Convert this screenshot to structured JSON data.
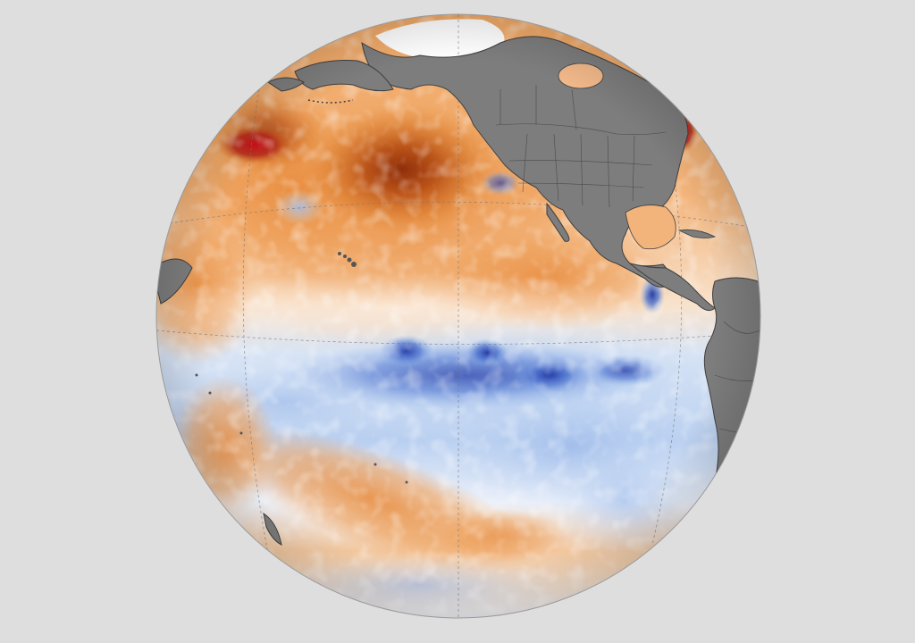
{
  "map": {
    "projection": "orthographic",
    "center_region": "eastern-equatorial-pacific",
    "variable": "sea-surface-temperature-anomaly",
    "pattern": "La Nina",
    "colors": {
      "background": "#dedede",
      "land": "#7d7d7d",
      "land_border": "#3f3f3f",
      "ice": "#ffffff",
      "neutral": "#fbf6f0",
      "warm_light": "#f6c9a0",
      "warm_medium": "#ec9a52",
      "warm_strong": "#cf6a1c",
      "warm_extreme": "#8f2a08",
      "hot_spot": "#c8101a",
      "cool_light": "#cfe0f6",
      "cool_medium": "#8fb1e6",
      "cool_strong": "#4c73cf",
      "cool_extreme": "#2238a5",
      "graticule": "#777777"
    },
    "features": [
      "north-pacific-warm-blob",
      "equatorial-cold-tongue",
      "north-america",
      "central-america",
      "south-america-west-coast",
      "hawaiian-islands",
      "arctic-sea-ice"
    ]
  }
}
